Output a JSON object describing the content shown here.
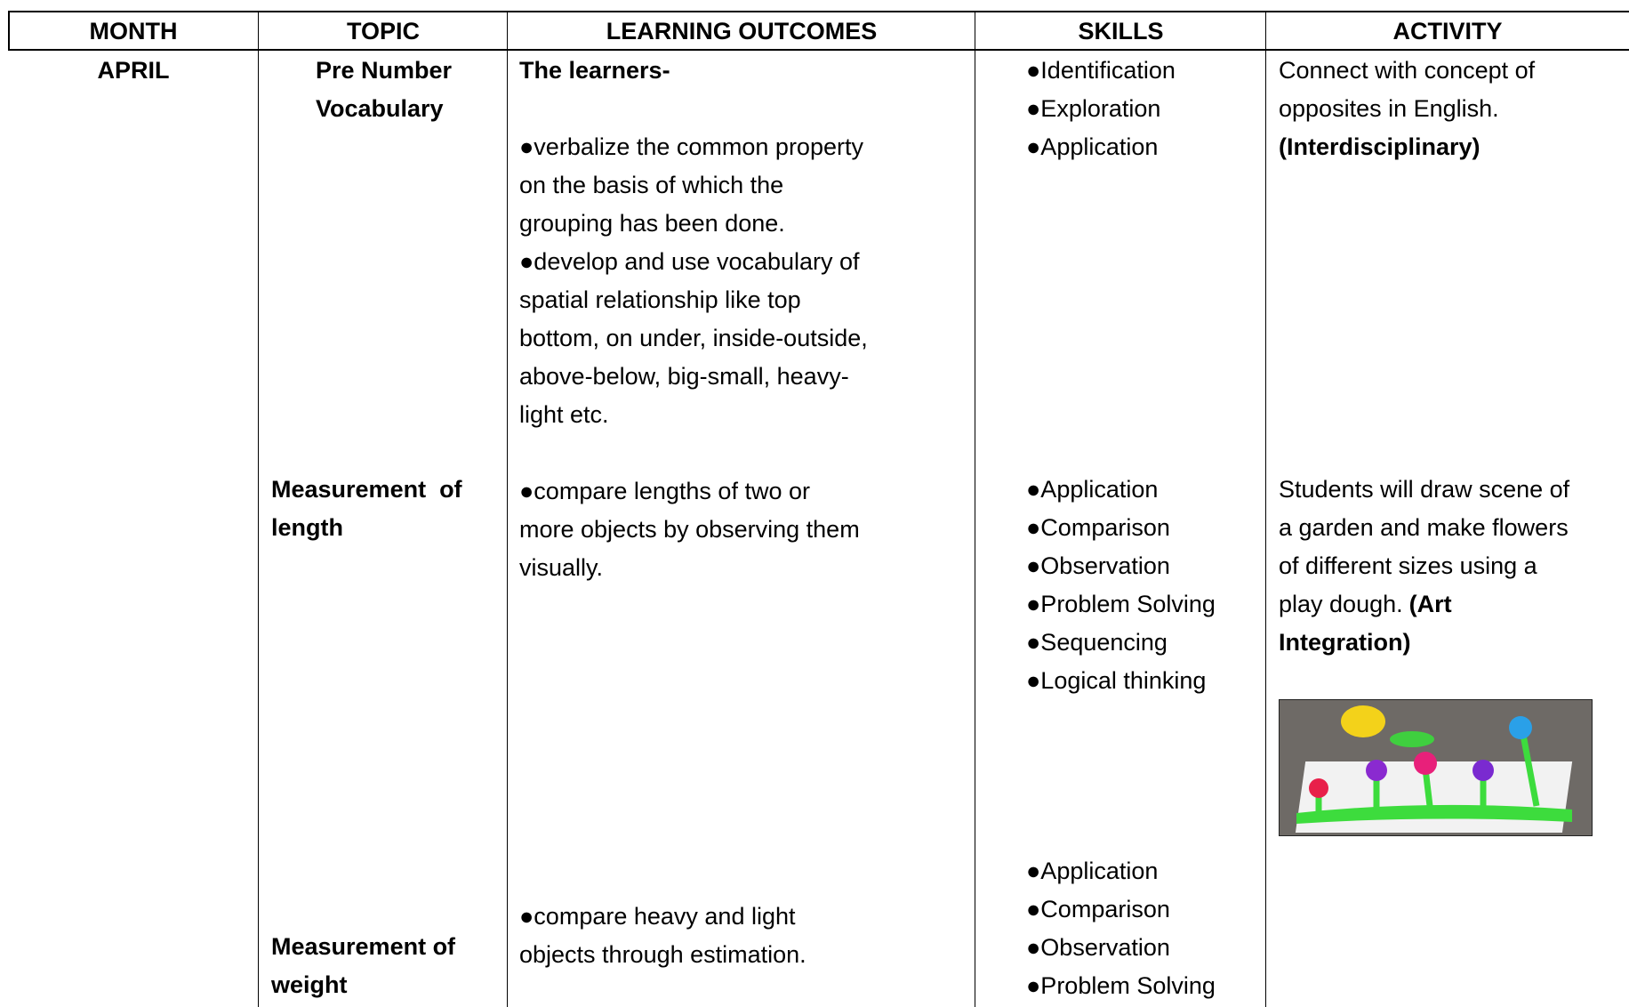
{
  "header": {
    "columns": [
      "MONTH",
      "TOPIC",
      "LEARNING OUTCOMES",
      "SKILLS",
      "ACTIVITY"
    ]
  },
  "rows": [
    {
      "month": "APRIL",
      "topic": [
        "Pre Number",
        "Vocabulary"
      ],
      "outcomes": [
        "The learners-",
        "",
        "●verbalize the common property",
        "on the basis of which the",
        "grouping has been done.",
        "●develop and use vocabulary of",
        "spatial relationship like top",
        "bottom, on under, inside-outside,",
        "above-below, big-small, heavy-",
        "light etc."
      ],
      "skills": [
        "●Identification",
        "●Exploration",
        "●Application"
      ],
      "activity": [
        [
          {
            "text": "Connect with concept of",
            "bold": false
          }
        ],
        [
          {
            "text": "opposites in English.",
            "bold": false
          }
        ],
        [
          {
            "text": "(Interdisciplinary)",
            "bold": true
          }
        ]
      ]
    },
    {
      "topic": [
        "Measurement  of",
        "length"
      ],
      "outcomes": [
        "●compare lengths of two or",
        "more objects by observing them",
        "visually."
      ],
      "skills": [
        "●Application",
        "●Comparison",
        "●Observation",
        "●Problem Solving",
        "●Sequencing",
        "●Logical thinking"
      ],
      "activity": [
        [
          {
            "text": "Students will draw scene of",
            "bold": false
          }
        ],
        [
          {
            "text": "a garden and make flowers",
            "bold": false
          }
        ],
        [
          {
            "text": "of different sizes using a",
            "bold": false
          }
        ],
        [
          {
            "text": "play dough.",
            "bold": false
          },
          {
            "text": "(Art",
            "bold": true
          }
        ],
        [
          {
            "text": "Integration)",
            "bold": true
          }
        ]
      ]
    },
    {
      "topic": [
        "Measurement of",
        "weight"
      ],
      "outcomes": [
        "●compare heavy and light",
        "objects through estimation."
      ],
      "skills": [
        "●Application",
        "●Comparison",
        "●Observation",
        "●Problem Solving"
      ],
      "activity": []
    }
  ]
}
